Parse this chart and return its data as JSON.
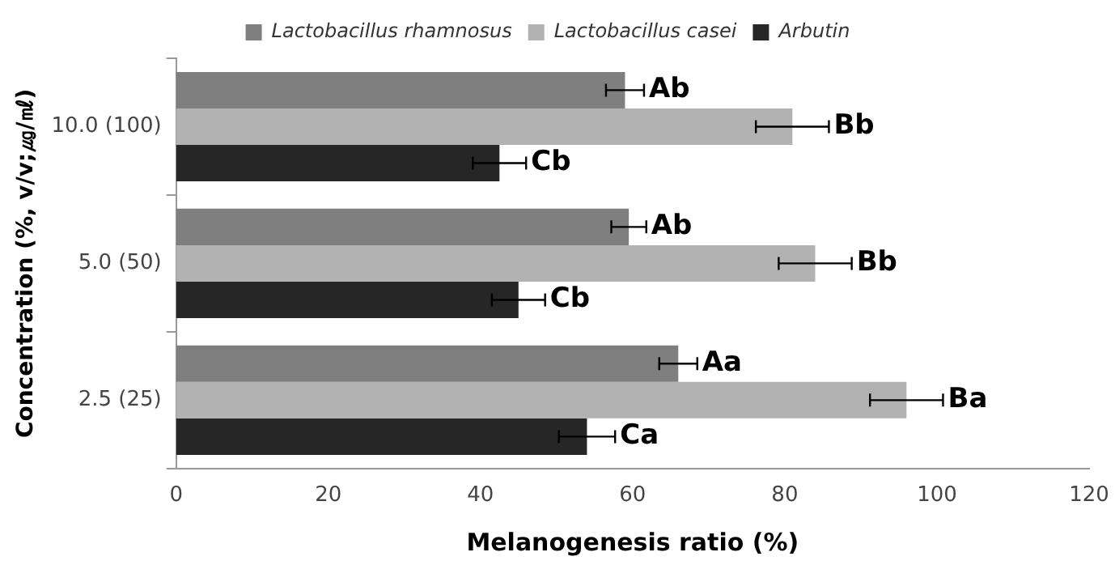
{
  "chart_data": {
    "type": "bar",
    "orientation": "horizontal",
    "xlabel": "Melanogenesis ratio (%)",
    "ylabel": "Concentration (%, v/v;㎍/㎖)",
    "categories": [
      "10.0 (100)",
      "5.0 (50)",
      "2.5 (25)"
    ],
    "series": [
      {
        "name": "Lactobacillus rhamnosus",
        "color": "#7f7f7f",
        "values": [
          59,
          59.5,
          66
        ],
        "errors": [
          2.5,
          2.3,
          2.5
        ],
        "value_labels": [
          "Ab",
          "Ab",
          "Aa"
        ]
      },
      {
        "name": "Lactobacillus casei",
        "color": "#b2b2b2",
        "values": [
          81,
          84,
          96
        ],
        "errors": [
          4.8,
          4.8,
          4.8
        ],
        "value_labels": [
          "Bb",
          "Bb",
          "Ba"
        ]
      },
      {
        "name": "Arbutin",
        "color": "#262626",
        "values": [
          42.5,
          45,
          54
        ],
        "errors": [
          3.5,
          3.5,
          3.7
        ],
        "value_labels": [
          "Cb",
          "Cb",
          "Ca"
        ]
      }
    ],
    "xlim": [
      0,
      120
    ],
    "xticks": [
      0,
      20,
      40,
      60,
      80,
      100,
      120
    ],
    "grid": false,
    "legend": "top"
  }
}
